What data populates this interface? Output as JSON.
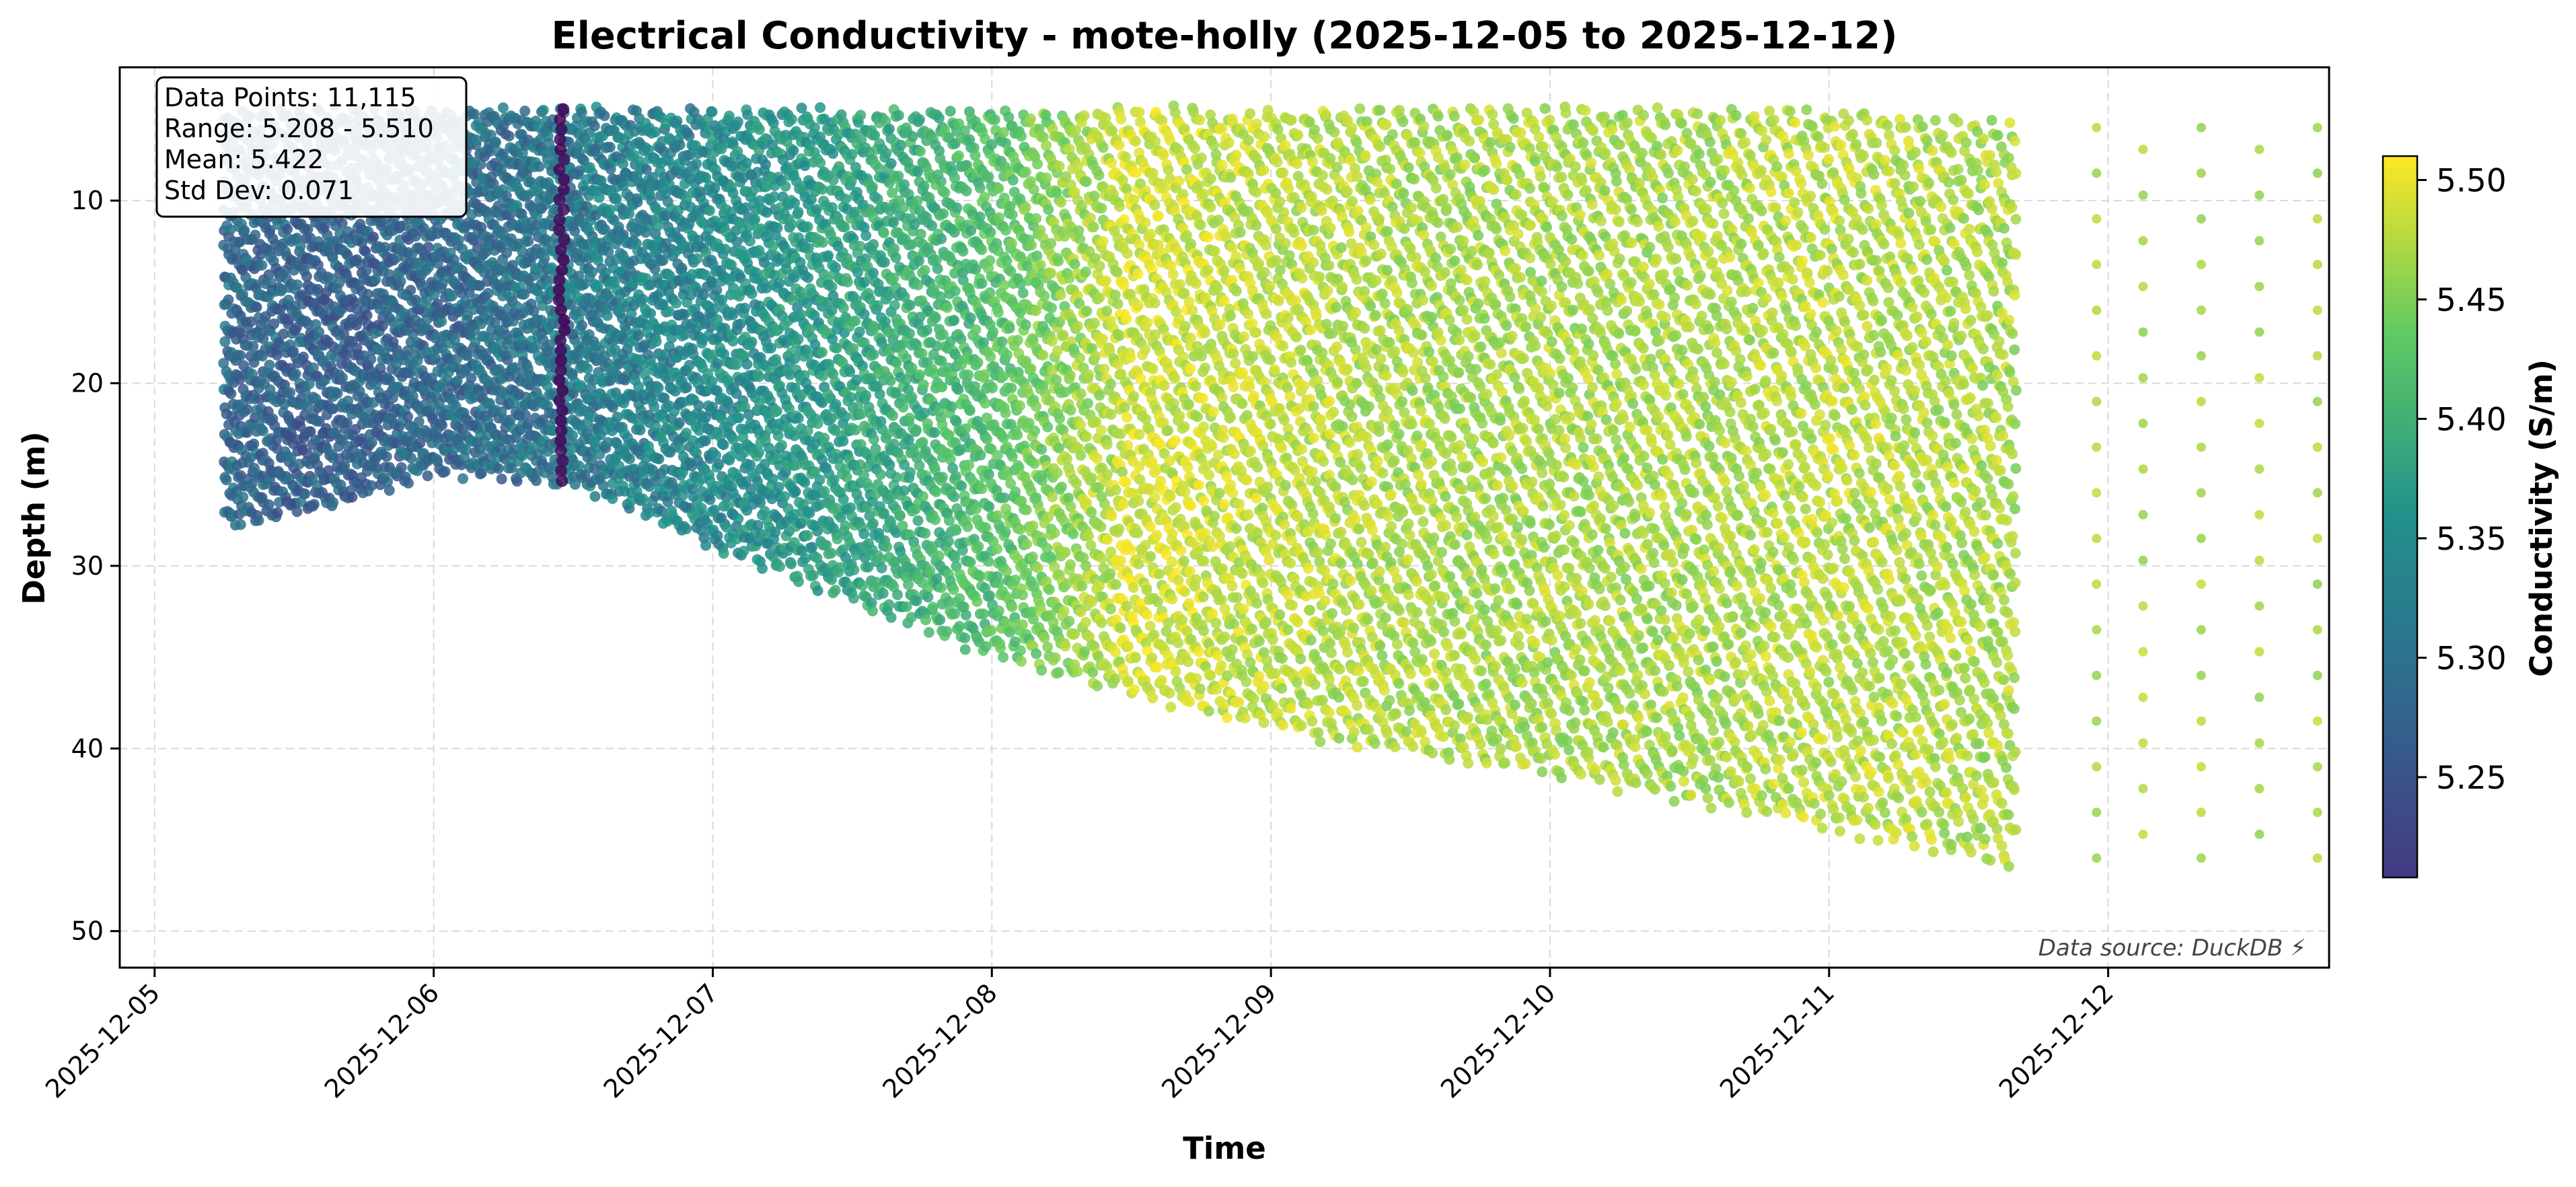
{
  "chart_data": {
    "type": "scatter",
    "title": "Electrical Conductivity - mote-holly (2025-12-05 to 2025-12-12)",
    "xlabel": "Time",
    "ylabel": "Depth (m)",
    "x_ticks": [
      "2025-12-05",
      "2025-12-06",
      "2025-12-07",
      "2025-12-08",
      "2025-12-09",
      "2025-12-10",
      "2025-12-11",
      "2025-12-12"
    ],
    "y_ticks": [
      10,
      20,
      30,
      40,
      50
    ],
    "xlim": [
      "2025-12-04 21:00",
      "2025-12-12 19:00"
    ],
    "ylim": [
      52,
      2.7
    ],
    "y_inverted": true,
    "grid": true,
    "colormap": "viridis",
    "colorbar": {
      "label": "Conductivity (S/m)",
      "range": [
        5.208,
        5.51
      ],
      "ticks": [
        5.25,
        5.3,
        5.35,
        5.4,
        5.45,
        5.5
      ]
    },
    "stats_box": {
      "lines": [
        "Data Points: 11,115",
        "Range: 5.208 - 5.510",
        "Mean: 5.422",
        "Std Dev: 0.071"
      ],
      "position": "top-left"
    },
    "source_note": "Data source: DuckDB ⚡",
    "series_profile": {
      "description_points": [
        {
          "time": "2025-12-05 06:00",
          "min_depth": 5.2,
          "max_depth": 28,
          "conductivity": 5.31
        },
        {
          "time": "2025-12-05 14:00",
          "min_depth": 5.2,
          "max_depth": 27,
          "conductivity": 5.3
        },
        {
          "time": "2025-12-06 00:00",
          "min_depth": 5.2,
          "max_depth": 25,
          "conductivity": 5.31
        },
        {
          "time": "2025-12-06 12:00",
          "min_depth": 5.2,
          "max_depth": 25.5,
          "conductivity": 5.33
        },
        {
          "time": "2025-12-07 00:00",
          "min_depth": 5.2,
          "max_depth": 29,
          "conductivity": 5.35
        },
        {
          "time": "2025-12-07 12:00",
          "min_depth": 5.2,
          "max_depth": 32,
          "conductivity": 5.38
        },
        {
          "time": "2025-12-08 00:00",
          "min_depth": 5.2,
          "max_depth": 35,
          "conductivity": 5.42
        },
        {
          "time": "2025-12-08 12:00",
          "min_depth": 5.2,
          "max_depth": 37,
          "conductivity": 5.49
        },
        {
          "time": "2025-12-09 00:00",
          "min_depth": 5.2,
          "max_depth": 39,
          "conductivity": 5.48
        },
        {
          "time": "2025-12-09 12:00",
          "min_depth": 5.2,
          "max_depth": 40.5,
          "conductivity": 5.47
        },
        {
          "time": "2025-12-10 00:00",
          "min_depth": 5.2,
          "max_depth": 41.5,
          "conductivity": 5.47
        },
        {
          "time": "2025-12-10 12:00",
          "min_depth": 5.2,
          "max_depth": 43,
          "conductivity": 5.47
        },
        {
          "time": "2025-12-11 00:00",
          "min_depth": 5.2,
          "max_depth": 44.5,
          "conductivity": 5.48
        },
        {
          "time": "2025-12-11 16:00",
          "min_depth": 6,
          "max_depth": 46.5,
          "conductivity": 5.47
        }
      ],
      "anomaly": {
        "time": "2025-12-06 11:00",
        "min_depth": 5,
        "max_depth": 25.5,
        "conductivity": 5.21
      },
      "sparse_tail_times": [
        "2025-12-11 23:00",
        "2025-12-12 03:00",
        "2025-12-12 08:00",
        "2025-12-12 13:00",
        "2025-12-12 18:00"
      ]
    }
  }
}
